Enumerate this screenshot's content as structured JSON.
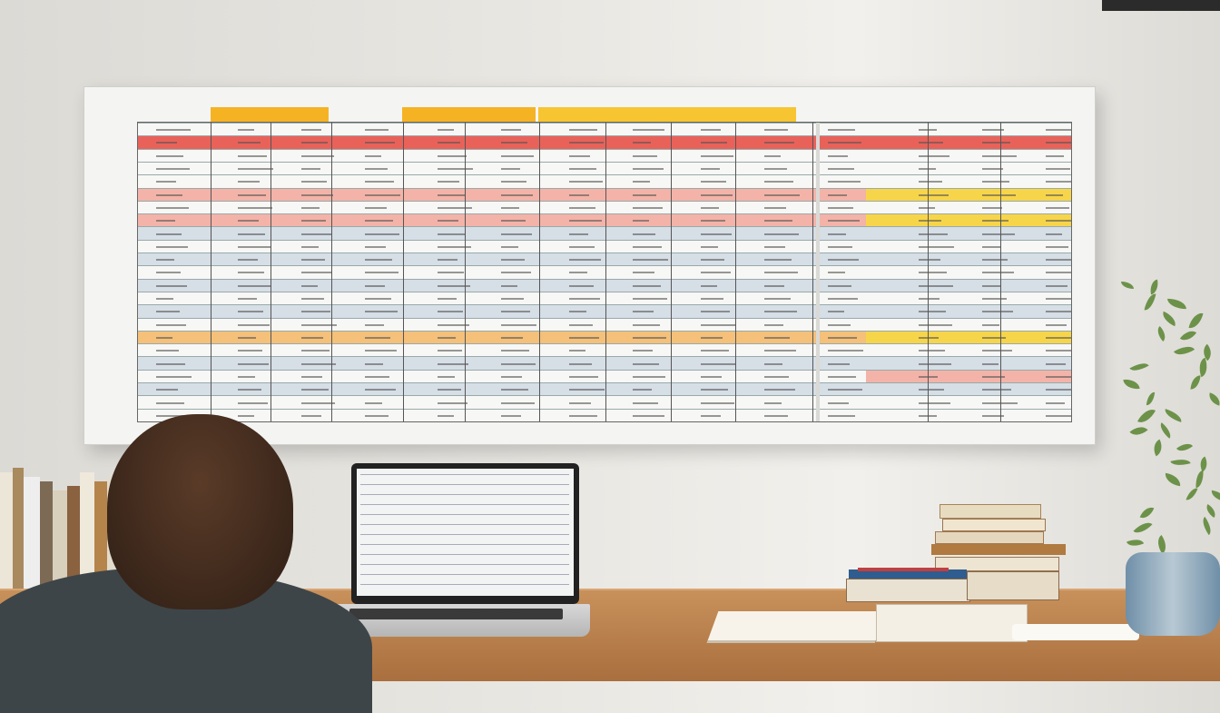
{
  "scene": {
    "colors": {
      "wall": "#e4e2dd",
      "board": "#f4f4f2",
      "header_band": "#f5b324",
      "row_red": "#e9625a",
      "row_pink": "#f4b3a8",
      "row_yellow": "#f7d54a",
      "row_orange": "#f4c07a",
      "row_blue": "#d6dee6",
      "desk": "#c08552",
      "sweater": "#3e4548",
      "hair": "#3d291c"
    },
    "wall_chart": {
      "rows": [
        "plain",
        "red",
        "plain",
        "plain",
        "plain",
        "pink",
        "plain",
        "pink",
        "blue",
        "plain",
        "blue",
        "plain",
        "blue",
        "plain",
        "blue",
        "plain",
        "orange",
        "plain",
        "blue",
        "plain",
        "blue",
        "plain",
        "plain"
      ],
      "right_panel_rows": [
        "plain",
        "red",
        "plain",
        "plain",
        "plain",
        "yellow",
        "plain",
        "yellow",
        "blue",
        "plain",
        "blue",
        "plain",
        "blue",
        "plain",
        "blue",
        "plain",
        "yellow",
        "plain",
        "blue",
        "pink",
        "blue",
        "plain",
        "plain"
      ]
    }
  }
}
